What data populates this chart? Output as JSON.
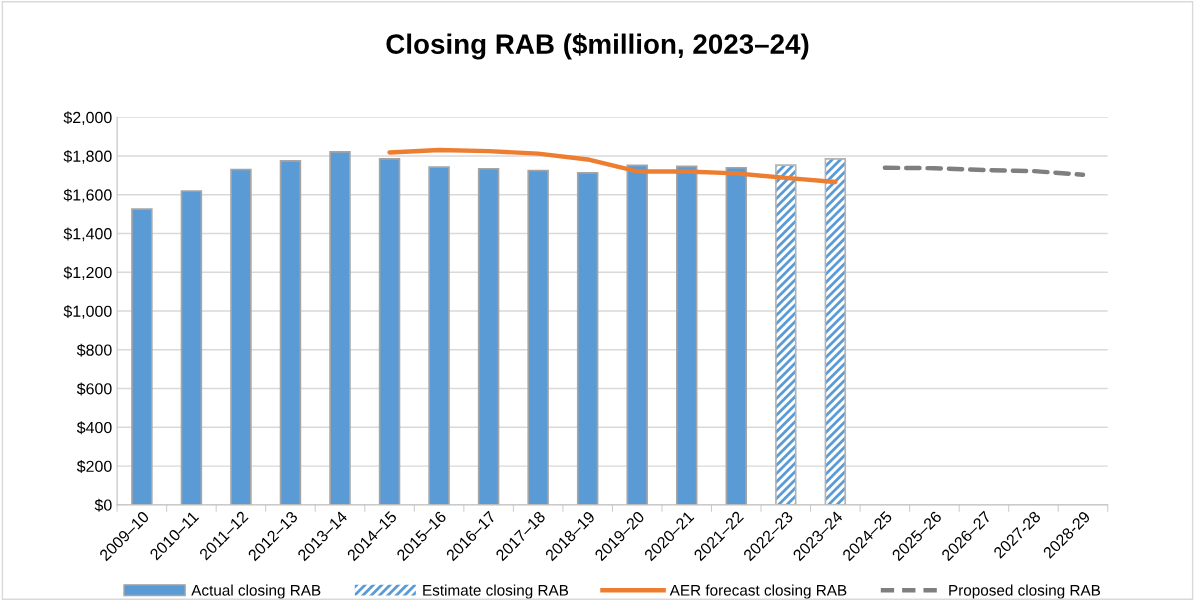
{
  "chart_data": {
    "type": "bar",
    "title": "Closing RAB ($million, 2023–24)",
    "categories": [
      "2009–10",
      "2010–11",
      "2011–12",
      "2012–13",
      "2013–14",
      "2014–15",
      "2015–16",
      "2016–17",
      "2017–18",
      "2018–19",
      "2019–20",
      "2020–21",
      "2021–22",
      "2022–23",
      "2023–24",
      "2024–25",
      "2025–26",
      "2026–27",
      "2027-28",
      "2028-29"
    ],
    "series": [
      {
        "name": "Actual closing RAB",
        "color": "#5b9bd5",
        "values": [
          1526,
          1619,
          1730,
          1775,
          1821,
          1785,
          1742,
          1734,
          1725,
          1713,
          1751,
          1746,
          1739,
          null,
          null,
          null,
          null,
          null,
          null,
          null
        ]
      },
      {
        "name": "Estimate closing RAB",
        "color": "#5b9bd5",
        "values": [
          null,
          null,
          null,
          null,
          null,
          null,
          null,
          null,
          null,
          null,
          null,
          null,
          null,
          1753,
          1785,
          null,
          null,
          null,
          null,
          null
        ]
      },
      {
        "name": "AER forecast closing RAB",
        "type": "line",
        "color": "#ed7d31",
        "line_style": "solid",
        "values": [
          null,
          null,
          null,
          null,
          null,
          1818,
          1831,
          1825,
          1812,
          1782,
          1720,
          1720,
          1710,
          1687,
          1666,
          null,
          null,
          null,
          null,
          null
        ]
      },
      {
        "name": "Proposed closing RAB",
        "type": "line",
        "color": "#7f7f7f",
        "line_style": "dashed",
        "values": [
          null,
          null,
          null,
          null,
          null,
          null,
          null,
          null,
          null,
          null,
          null,
          null,
          null,
          null,
          null,
          1739,
          1737,
          1727,
          1722,
          1703
        ]
      }
    ],
    "ylim": [
      0,
      2000
    ],
    "yticks": [
      {
        "value": 0,
        "label": "$0"
      },
      {
        "value": 200,
        "label": "$200"
      },
      {
        "value": 400,
        "label": "$400"
      },
      {
        "value": 600,
        "label": "$600"
      },
      {
        "value": 800,
        "label": "$800"
      },
      {
        "value": 1000,
        "label": "$1,000"
      },
      {
        "value": 1200,
        "label": "$1,200"
      },
      {
        "value": 1400,
        "label": "$1,400"
      },
      {
        "value": 1600,
        "label": "$1,600"
      },
      {
        "value": 1800,
        "label": "$1,800"
      },
      {
        "value": 2000,
        "label": "$2,000"
      }
    ],
    "grid": "y",
    "legend": "bottom",
    "marker": "none"
  }
}
